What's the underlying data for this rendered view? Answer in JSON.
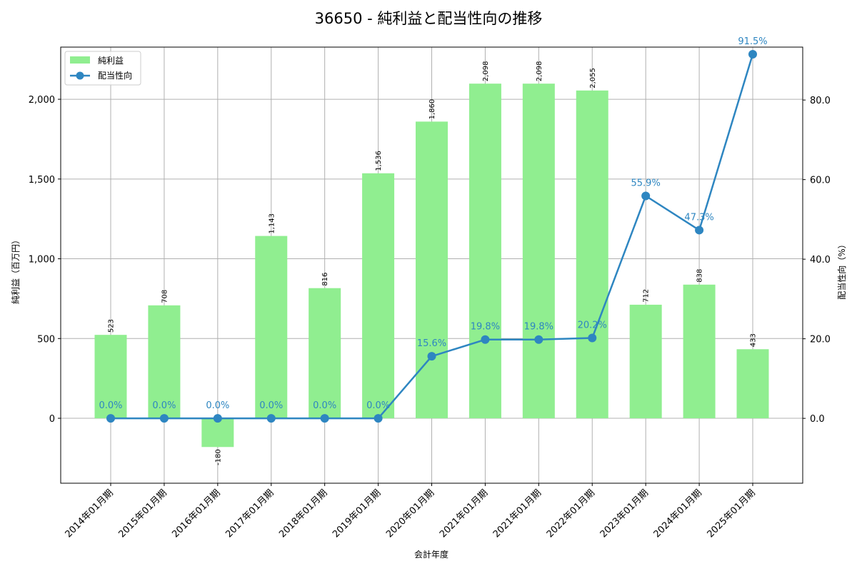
{
  "chart_data": {
    "type": "bar+line",
    "title": "36650 - 純利益と配当性向の推移",
    "xlabel": "会計年度",
    "ylabel_left": "純利益（百万円）",
    "ylabel_right": "配当性向（%）",
    "categories": [
      "2014年01月期",
      "2015年01月期",
      "2016年01月期",
      "2017年01月期",
      "2018年01月期",
      "2019年01月期",
      "2020年01月期",
      "2021年01月期",
      "2021年01月期",
      "2022年01月期",
      "2023年01月期",
      "2024年01月期",
      "2025年01月期"
    ],
    "series": [
      {
        "name": "純利益",
        "type": "bar",
        "axis": "left",
        "color": "#90ee90",
        "values": [
          523,
          708,
          -180,
          1143,
          816,
          1536,
          1860,
          2098,
          2098,
          2055,
          712,
          838,
          433
        ],
        "labels": [
          "523",
          "708",
          "-180",
          "1,143",
          "816",
          "1,536",
          "1,860",
          "2,098",
          "2,098",
          "2,055",
          "712",
          "838",
          "433"
        ]
      },
      {
        "name": "配当性向",
        "type": "line",
        "axis": "right",
        "color": "#2e86c1",
        "values": [
          0.0,
          0.0,
          0.0,
          0.0,
          0.0,
          0.0,
          15.6,
          19.8,
          19.8,
          20.2,
          55.9,
          47.3,
          91.5
        ],
        "labels": [
          "0.0%",
          "0.0%",
          "0.0%",
          "0.0%",
          "0.0%",
          "0.0%",
          "15.6%",
          "19.8%",
          "19.8%",
          "20.2%",
          "55.9%",
          "47.3%",
          "91.5%"
        ]
      }
    ],
    "ylim_left": [
      -407,
      2327
    ],
    "ylim_right": [
      -16.3,
      93.3
    ],
    "yticks_left": [
      0,
      500,
      1000,
      1500,
      2000
    ],
    "yticks_left_labels": [
      "0",
      "500",
      "1,000",
      "1,500",
      "2,000"
    ],
    "yticks_right": [
      0,
      20,
      40,
      60,
      80
    ],
    "yticks_right_labels": [
      "0.0",
      "20.0",
      "40.0",
      "60.0",
      "80.0"
    ],
    "grid": true,
    "legend_position": "upper left",
    "legend": [
      "純利益",
      "配当性向"
    ]
  }
}
